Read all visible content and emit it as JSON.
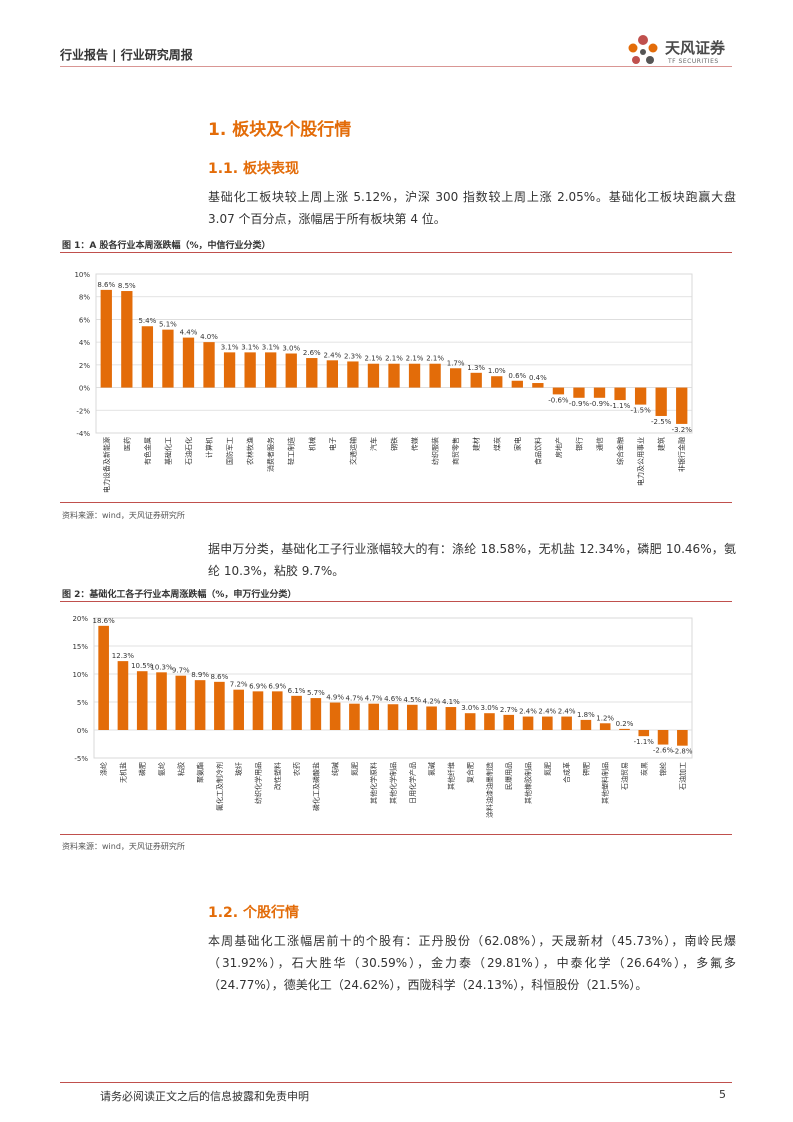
{
  "header": {
    "title": "行业报告 | 行业研究周报",
    "logo_cn": "天风证券",
    "logo_en": "TF SECURITIES"
  },
  "section1": {
    "title": "1. 板块及个股行情"
  },
  "section1_1": {
    "title": "1.1. 板块表现",
    "paragraph": "基础化工板块较上周上涨 5.12%，沪深 300 指数较上周上涨 2.05%。基础化工板块跑赢大盘 3.07 个百分点，涨幅居于所有板块第 4 位。"
  },
  "figure1": {
    "title": "图 1：A 股各行业本周涨跌幅（%，中信行业分类）",
    "source": "资料来源：wind，天风证券研究所"
  },
  "paragraph2": "据申万分类，基础化工子行业涨幅较大的有：涤纶 18.58%，无机盐 12.34%，磷肥 10.46%，氨纶 10.3%，粘胶 9.7%。",
  "figure2": {
    "title": "图 2：基础化工各子行业本周涨跌幅（%，申万行业分类）",
    "source": "资料来源：wind，天风证券研究所"
  },
  "section1_2": {
    "title": "1.2. 个股行情",
    "paragraph": "本周基础化工涨幅居前十的个股有：正丹股份（62.08%），天晟新材（45.73%），南岭民爆（31.92%），石大胜华（30.59%），金力泰（29.81%），中泰化学（26.64%），多氟多（24.77%），德美化工（24.62%），西陇科学（24.13%），科恒股份（21.5%）。"
  },
  "footer": {
    "disclaimer": "请务必阅读正文之后的信息披露和免责申明",
    "page": "5"
  },
  "colors": {
    "bar": "#e36c09",
    "accent": "#c0504d"
  },
  "chart_data": [
    {
      "type": "bar",
      "title": "A 股各行业本周涨跌幅（%，中信行业分类）",
      "categories": [
        "电力设备及新能源",
        "医药",
        "有色金属",
        "基础化工",
        "石油石化",
        "计算机",
        "国防军工",
        "农林牧渔",
        "消费者服务",
        "轻工制造",
        "机械",
        "电子",
        "交通运输",
        "汽车",
        "钢铁",
        "传媒",
        "纺织服装",
        "商贸零售",
        "建材",
        "煤炭",
        "家电",
        "食品饮料",
        "房地产",
        "银行",
        "通信",
        "综合金融",
        "电力及公用事业",
        "建筑",
        "非银行金融"
      ],
      "values": [
        8.6,
        8.5,
        5.4,
        5.1,
        4.4,
        4.0,
        3.1,
        3.1,
        3.1,
        3.0,
        2.6,
        2.4,
        2.3,
        2.1,
        2.1,
        2.1,
        2.1,
        1.7,
        1.3,
        1.0,
        0.6,
        0.4,
        -0.6,
        -0.9,
        -0.9,
        -1.1,
        -1.5,
        -2.5,
        -3.2
      ],
      "labels": [
        "8.6%",
        "8.5%",
        "5.4%",
        "5.1%",
        "4.4%",
        "4.0%",
        "3.1%",
        "3.1%",
        "3.1%",
        "3.0%",
        "2.6%",
        "2.4%",
        "2.3%",
        "2.1%",
        "2.1%",
        "2.1%",
        "2.1%",
        "1.7%",
        "1.3%",
        "1.0%",
        "0.6%",
        "0.4%",
        "-0.6%",
        "-0.9%",
        "-0.9%",
        "-1.1%",
        "-1.5%",
        "-2.5%",
        "-3.2%"
      ],
      "ylim": [
        -4,
        10
      ],
      "yticks": [
        "10%",
        "8%",
        "6%",
        "4%",
        "2%",
        "0%",
        "-2%",
        "-4%"
      ],
      "ytick_values": [
        10,
        8,
        6,
        4,
        2,
        0,
        -2,
        -4
      ],
      "grid": true
    },
    {
      "type": "bar",
      "title": "基础化工各子行业本周涨跌幅（%，申万行业分类）",
      "categories": [
        "涤纶",
        "无机盐",
        "磷肥",
        "氨纶",
        "粘胶",
        "聚氨酯",
        "氟化工及制冷剂",
        "玻纤",
        "纺织化学用品",
        "改性塑料",
        "农药",
        "磷化工及磷酸盐",
        "纯碱",
        "氮肥",
        "其他化学原料",
        "其他化学制品",
        "日用化学产品",
        "氯碱",
        "其他纤维",
        "复合肥",
        "涂料油漆油墨制造",
        "民爆用品",
        "其他橡胶制品",
        "氮肥2",
        "合成革",
        "钾肥",
        "其他塑料制品",
        "石油贸易",
        "炭黑",
        "锦纶",
        "石油加工"
      ],
      "values": [
        18.6,
        12.3,
        10.5,
        10.3,
        9.7,
        8.9,
        8.6,
        7.2,
        6.9,
        6.9,
        6.1,
        5.7,
        4.9,
        4.7,
        4.7,
        4.6,
        4.5,
        4.2,
        4.1,
        3.0,
        3.0,
        2.7,
        2.4,
        2.4,
        2.4,
        1.8,
        1.2,
        0.2,
        -1.1,
        -2.6,
        -2.8
      ],
      "labels": [
        "18.6%",
        "12.3%",
        "10.5%",
        "10.3%",
        "9.7%",
        "8.9%",
        "8.6%",
        "7.2%",
        "6.9%",
        "6.9%",
        "6.1%",
        "5.7%",
        "4.9%",
        "4.7%",
        "4.7%",
        "4.6%",
        "4.5%",
        "4.2%",
        "4.1%",
        "3.0%",
        "3.0%",
        "2.7%",
        "2.4%",
        "2.4%",
        "2.4%",
        "1.8%",
        "1.2%",
        "0.2%",
        "-1.1%",
        "-2.6%",
        "-2.8%"
      ],
      "xtick_labels": [
        "涤纶",
        "无机盐",
        "磷肥",
        "氨纶",
        "粘胶",
        "聚氨酯",
        "氟化工及制冷剂",
        "玻纤",
        "纺织化学用品",
        "改性塑料",
        "农药",
        "磷化工及磷酸盐",
        "纯碱",
        "氮肥",
        "其他化学原料",
        "其他化学制品",
        "日用化学产品",
        "氯碱",
        "其他纤维",
        "复合肥",
        "涂料油漆油墨制造",
        "民爆用品",
        "其他橡胶制品",
        "氮肥",
        "合成革",
        "钾肥",
        "其他塑料制品",
        "石油贸易",
        "炭黑",
        "锦纶",
        "石油加工"
      ],
      "ylim": [
        -5,
        20
      ],
      "yticks": [
        "20%",
        "15%",
        "10%",
        "5%",
        "0%",
        "-5%"
      ],
      "ytick_values": [
        20,
        15,
        10,
        5,
        0,
        -5
      ],
      "grid": true
    }
  ]
}
